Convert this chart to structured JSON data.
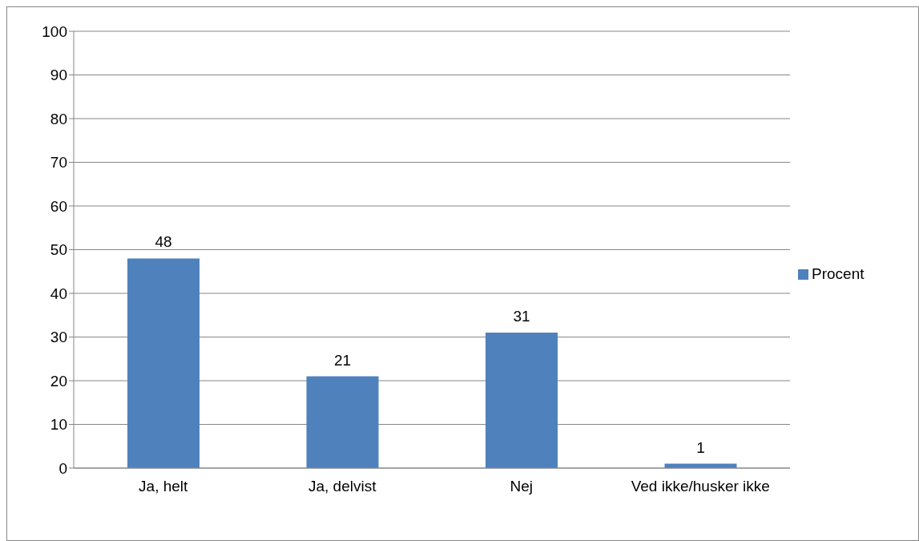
{
  "chart_data": {
    "type": "bar",
    "categories": [
      "Ja, helt",
      "Ja, delvist",
      "Nej",
      "Ved ikke/husker ikke"
    ],
    "series": [
      {
        "name": "Procent",
        "color": "#4f81bd",
        "values": [
          48,
          21,
          31,
          1
        ]
      }
    ],
    "ylim": [
      0,
      100
    ],
    "yticks": [
      0,
      10,
      20,
      30,
      40,
      50,
      60,
      70,
      80,
      90,
      100
    ],
    "grid": "y",
    "legend": "right",
    "data_labels": true
  }
}
